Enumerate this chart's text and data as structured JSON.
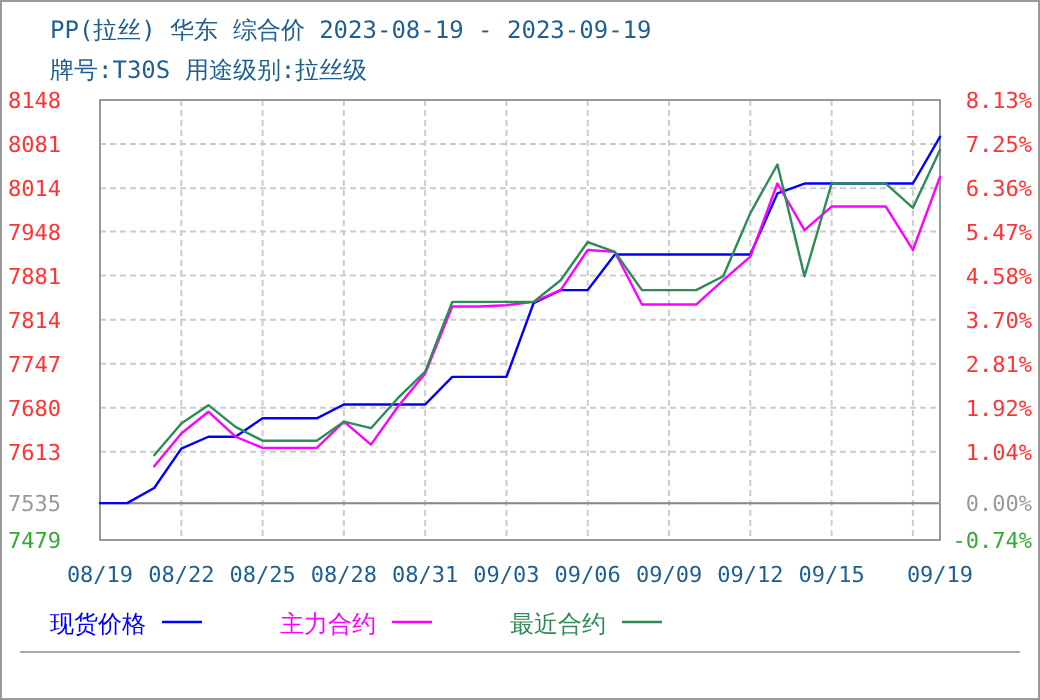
{
  "chart_data": {
    "type": "line",
    "title": "PP(拉丝) 华东 综合价 2023-08-19 - 2023-09-19",
    "subtitle": "牌号:T30S 用途级别:拉丝级",
    "x": [
      "2023-08-19",
      "2023-08-20",
      "2023-08-21",
      "2023-08-22",
      "2023-08-23",
      "2023-08-24",
      "2023-08-25",
      "2023-08-26",
      "2023-08-27",
      "2023-08-28",
      "2023-08-29",
      "2023-08-30",
      "2023-08-31",
      "2023-09-01",
      "2023-09-02",
      "2023-09-03",
      "2023-09-04",
      "2023-09-05",
      "2023-09-06",
      "2023-09-07",
      "2023-09-08",
      "2023-09-09",
      "2023-09-10",
      "2023-09-11",
      "2023-09-12",
      "2023-09-13",
      "2023-09-14",
      "2023-09-15",
      "2023-09-16",
      "2023-09-17",
      "2023-09-18",
      "2023-09-19"
    ],
    "series": [
      {
        "name": "现货价格",
        "color": "#0000ff",
        "values": [
          7535,
          7535,
          7558,
          7618,
          7636,
          7636,
          7664,
          7664,
          7664,
          7685,
          7685,
          7685,
          7685,
          7727,
          7727,
          7727,
          7839,
          7859,
          7859,
          7913,
          7913,
          7913,
          7913,
          7913,
          7913,
          8006,
          8021,
          8021,
          8021,
          8021,
          8021,
          8092
        ]
      },
      {
        "name": "主力合约",
        "color": "#ff00ff",
        "values": [
          null,
          null,
          7591,
          7641,
          7674,
          7636,
          7619,
          7619,
          7619,
          7659,
          7624,
          7682,
          7732,
          7834,
          7834,
          7836,
          7841,
          7859,
          7920,
          7917,
          7837,
          7837,
          7837,
          7874,
          7910,
          8021,
          7950,
          7986,
          7986,
          7986,
          7920,
          8031
        ]
      },
      {
        "name": "最近合约",
        "color": "#2e8b57",
        "values": [
          null,
          null,
          7608,
          7656,
          7684,
          7651,
          7630,
          7630,
          7630,
          7659,
          7649,
          7695,
          7735,
          7841,
          7841,
          7841,
          7841,
          7874,
          7932,
          7917,
          7859,
          7859,
          7859,
          7880,
          7976,
          8050,
          7880,
          8021,
          8021,
          8021,
          7984,
          8072
        ]
      }
    ],
    "xlim": [
      "2023-08-19",
      "2023-09-19"
    ],
    "xticks": [
      {
        "value": "2023-08-19",
        "label": "08/19"
      },
      {
        "value": "2023-08-22",
        "label": "08/22"
      },
      {
        "value": "2023-08-25",
        "label": "08/25"
      },
      {
        "value": "2023-08-28",
        "label": "08/28"
      },
      {
        "value": "2023-08-31",
        "label": "08/31"
      },
      {
        "value": "2023-09-03",
        "label": "09/03"
      },
      {
        "value": "2023-09-06",
        "label": "09/06"
      },
      {
        "value": "2023-09-09",
        "label": "09/09"
      },
      {
        "value": "2023-09-12",
        "label": "09/12"
      },
      {
        "value": "2023-09-15",
        "label": "09/15"
      },
      {
        "value": "2023-09-18",
        "label": null
      },
      {
        "value": "2023-09-19",
        "label": "09/19"
      }
    ],
    "ylim": [
      7479,
      8148
    ],
    "yticks": [
      7479,
      7535,
      7613,
      7680,
      7747,
      7814,
      7881,
      7948,
      8014,
      8081,
      8148
    ],
    "y2lim": [
      -0.74,
      8.13
    ],
    "y2ticks": [
      {
        "value": -0.74,
        "label": "-0.74%"
      },
      {
        "value": 0,
        "label": "0.00%"
      },
      {
        "value": 1.04,
        "label": "1.04%"
      },
      {
        "value": 1.92,
        "label": "1.92%"
      },
      {
        "value": 2.81,
        "label": "2.81%"
      },
      {
        "value": 3.7,
        "label": "3.70%"
      },
      {
        "value": 4.58,
        "label": "4.58%"
      },
      {
        "value": 5.47,
        "label": "5.47%"
      },
      {
        "value": 6.36,
        "label": "6.36%"
      },
      {
        "value": 7.25,
        "label": "7.25%"
      },
      {
        "value": 8.13,
        "label": "8.13%"
      }
    ],
    "ref_lines": [
      {
        "axis": "y",
        "value": 7535,
        "color": "#888888"
      }
    ],
    "grid": true,
    "legend": "bottom",
    "marker": "none",
    "line_style": "solid"
  }
}
